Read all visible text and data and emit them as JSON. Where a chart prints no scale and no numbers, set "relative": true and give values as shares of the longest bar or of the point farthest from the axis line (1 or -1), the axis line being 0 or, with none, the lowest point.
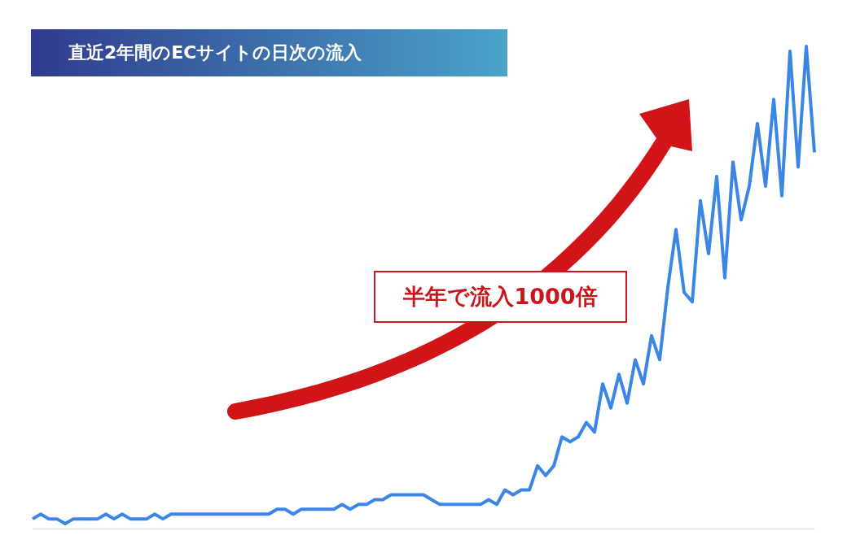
{
  "chart_data": {
    "type": "line",
    "title": "直近2年間のECサイトの日次の流入",
    "relative": true,
    "annotations": [
      "半年で流入1000倍"
    ],
    "categories": [
      null,
      null,
      null,
      null,
      null,
      null,
      null,
      null,
      null,
      null,
      null,
      null,
      null,
      null,
      null,
      null,
      null,
      null,
      null,
      null,
      null,
      null,
      null,
      null,
      null,
      null,
      null,
      null,
      null,
      null,
      null,
      null,
      null,
      null,
      null,
      null,
      null,
      null,
      null,
      null,
      null,
      null,
      null,
      null,
      null,
      null,
      null,
      null,
      null,
      null,
      null,
      null,
      null,
      null,
      null,
      null,
      null,
      null,
      null,
      null,
      null,
      null,
      null,
      null,
      null,
      null,
      null,
      null,
      null,
      null,
      null,
      null,
      null,
      null,
      null,
      null,
      null,
      null,
      null,
      null,
      null,
      null,
      null,
      null,
      null,
      null,
      null,
      null,
      null,
      null,
      null,
      null,
      null,
      null,
      null,
      null,
      null
    ],
    "series": [
      {
        "color": "#3b86e4",
        "values": [
          0.02,
          0.03,
          0.02,
          0.02,
          0.01,
          0.02,
          0.02,
          0.02,
          0.02,
          0.03,
          0.02,
          0.03,
          0.02,
          0.02,
          0.02,
          0.03,
          0.02,
          0.03,
          0.03,
          0.03,
          0.03,
          0.03,
          0.03,
          0.03,
          0.03,
          0.03,
          0.03,
          0.03,
          0.03,
          0.03,
          0.04,
          0.04,
          0.03,
          0.04,
          0.04,
          0.04,
          0.04,
          0.04,
          0.05,
          0.04,
          0.05,
          0.05,
          0.06,
          0.06,
          0.07,
          0.07,
          0.07,
          0.07,
          0.07,
          0.06,
          0.05,
          0.05,
          0.05,
          0.05,
          0.05,
          0.05,
          0.06,
          0.05,
          0.08,
          0.07,
          0.08,
          0.08,
          0.13,
          0.11,
          0.13,
          0.19,
          0.18,
          0.19,
          0.22,
          0.2,
          0.3,
          0.25,
          0.32,
          0.26,
          0.35,
          0.3,
          0.4,
          0.35,
          0.5,
          0.62,
          0.49,
          0.47,
          0.68,
          0.57,
          0.73,
          0.52,
          0.76,
          0.64,
          0.71,
          0.84,
          0.71,
          0.89,
          0.69,
          0.99,
          0.75,
          1,
          0.78
        ]
      }
    ]
  }
}
